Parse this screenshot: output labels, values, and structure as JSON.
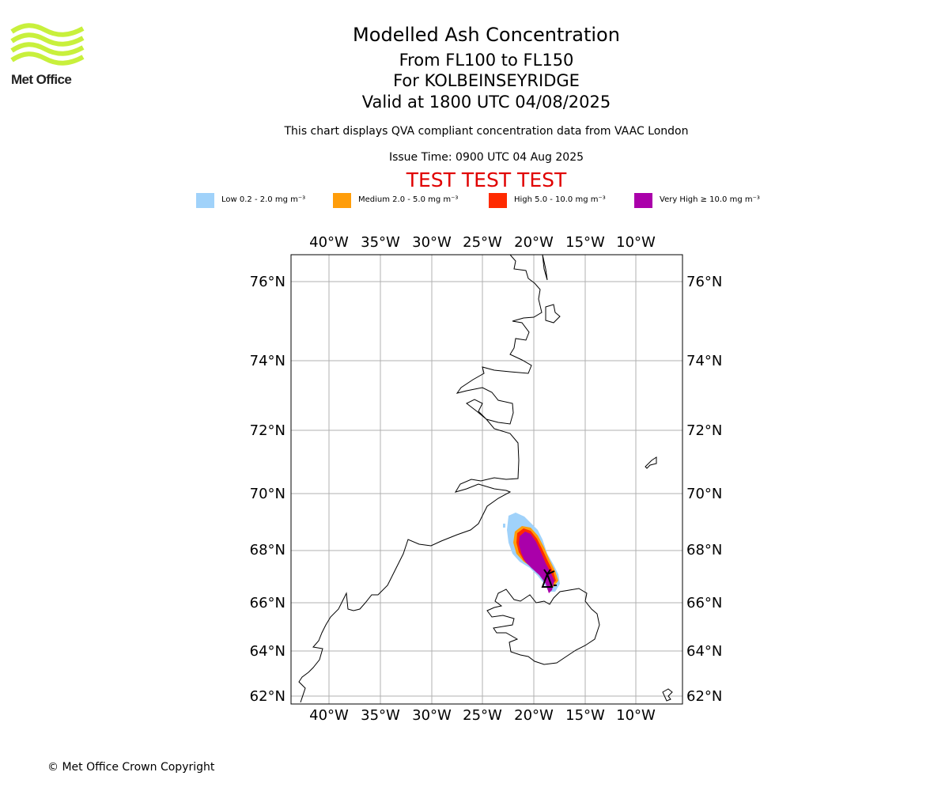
{
  "brand": {
    "name": "Met Office",
    "color": "#c8f03c"
  },
  "header": {
    "title": "Modelled Ash Concentration",
    "levels": "From FL100 to FL150",
    "location": "For KOLBEINSEYRIDGE",
    "valid": "Valid at 1800 UTC 04/08/2025",
    "description": "This chart displays QVA compliant concentration data from VAAC London",
    "issue": "Issue Time: 0900 UTC 04 Aug 2025",
    "test_banner": "TEST TEST TEST"
  },
  "legend": [
    {
      "label": "Low 0.2 - 2.0 mg m⁻³",
      "color": "#a0d2fa"
    },
    {
      "label": "Medium 2.0 - 5.0 mg m⁻³",
      "color": "#ff9d0a"
    },
    {
      "label": "High 5.0 - 10.0 mg m⁻³",
      "color": "#ff2a00"
    },
    {
      "label": "Very High ≥ 10.0 mg m⁻³",
      "color": "#aa00aa"
    }
  ],
  "map": {
    "lon_ticks": [
      "40°W",
      "35°W",
      "30°W",
      "25°W",
      "20°W",
      "15°W",
      "10°W"
    ],
    "lat_ticks": [
      "76°N",
      "74°N",
      "72°N",
      "70°N",
      "68°N",
      "66°N",
      "64°N",
      "62°N"
    ],
    "grid": true,
    "volcano_marker": "volcano-symbol"
  },
  "footer": {
    "copyright": "© Met Office Crown Copyright"
  }
}
